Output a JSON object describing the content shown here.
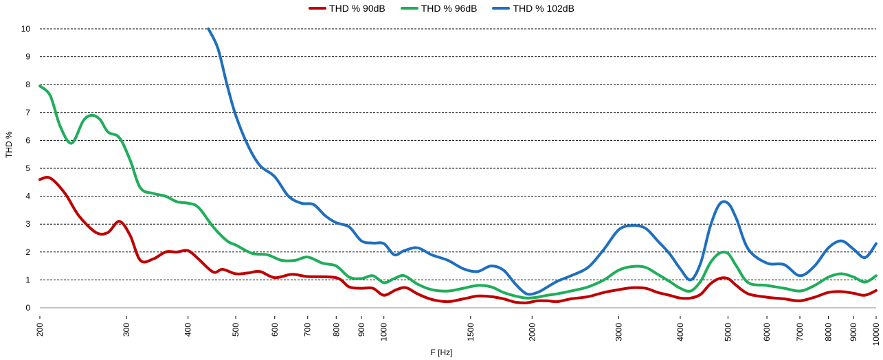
{
  "chart_data": {
    "type": "line",
    "xlabel": "F [Hz]",
    "ylabel": "THD %",
    "xscale": "log",
    "xlim": [
      200,
      10000
    ],
    "ylim": [
      0,
      10
    ],
    "yticks": [
      "0",
      "1",
      "2",
      "3",
      "4",
      "5",
      "6",
      "7",
      "8",
      "9",
      "10"
    ],
    "xticks": [
      {
        "value": 200,
        "label": "200"
      },
      {
        "value": 300,
        "label": "300"
      },
      {
        "value": 400,
        "label": "400"
      },
      {
        "value": 500,
        "label": "500"
      },
      {
        "value": 600,
        "label": "600"
      },
      {
        "value": 700,
        "label": "700"
      },
      {
        "value": 800,
        "label": "800"
      },
      {
        "value": 900,
        "label": "900"
      },
      {
        "value": 1000,
        "label": "1000"
      },
      {
        "value": 1500,
        "label": "1500"
      },
      {
        "value": 2000,
        "label": "2000"
      },
      {
        "value": 3000,
        "label": "3000"
      },
      {
        "value": 4000,
        "label": "4000"
      },
      {
        "value": 5000,
        "label": "5000"
      },
      {
        "value": 6000,
        "label": "6000"
      },
      {
        "value": 7000,
        "label": "7000"
      },
      {
        "value": 8000,
        "label": "8000"
      },
      {
        "value": 9000,
        "label": "9000"
      },
      {
        "value": 10000,
        "label": "10000"
      }
    ],
    "grid": "horizontal dashed",
    "legend_position": "top",
    "series": [
      {
        "name": "THD % 90dB",
        "color": "#c00000",
        "points": [
          [
            200,
            4.6
          ],
          [
            210,
            4.65
          ],
          [
            225,
            4.1
          ],
          [
            240,
            3.3
          ],
          [
            260,
            2.7
          ],
          [
            275,
            2.7
          ],
          [
            290,
            3.1
          ],
          [
            305,
            2.6
          ],
          [
            320,
            1.7
          ],
          [
            340,
            1.75
          ],
          [
            360,
            2.0
          ],
          [
            380,
            2.0
          ],
          [
            400,
            2.05
          ],
          [
            420,
            1.75
          ],
          [
            450,
            1.28
          ],
          [
            470,
            1.38
          ],
          [
            500,
            1.22
          ],
          [
            530,
            1.25
          ],
          [
            560,
            1.3
          ],
          [
            600,
            1.08
          ],
          [
            650,
            1.2
          ],
          [
            700,
            1.12
          ],
          [
            800,
            1.08
          ],
          [
            850,
            0.75
          ],
          [
            900,
            0.7
          ],
          [
            950,
            0.7
          ],
          [
            1000,
            0.45
          ],
          [
            1060,
            0.65
          ],
          [
            1110,
            0.72
          ],
          [
            1170,
            0.5
          ],
          [
            1250,
            0.3
          ],
          [
            1350,
            0.22
          ],
          [
            1450,
            0.32
          ],
          [
            1550,
            0.42
          ],
          [
            1650,
            0.4
          ],
          [
            1750,
            0.32
          ],
          [
            1850,
            0.2
          ],
          [
            1950,
            0.18
          ],
          [
            2050,
            0.25
          ],
          [
            2150,
            0.25
          ],
          [
            2250,
            0.22
          ],
          [
            2400,
            0.32
          ],
          [
            2600,
            0.4
          ],
          [
            2800,
            0.55
          ],
          [
            3000,
            0.65
          ],
          [
            3200,
            0.72
          ],
          [
            3400,
            0.7
          ],
          [
            3600,
            0.55
          ],
          [
            3800,
            0.45
          ],
          [
            4000,
            0.35
          ],
          [
            4200,
            0.35
          ],
          [
            4400,
            0.48
          ],
          [
            4600,
            0.85
          ],
          [
            4800,
            1.05
          ],
          [
            5000,
            1.05
          ],
          [
            5200,
            0.8
          ],
          [
            5500,
            0.5
          ],
          [
            6000,
            0.38
          ],
          [
            6500,
            0.32
          ],
          [
            7000,
            0.25
          ],
          [
            7500,
            0.38
          ],
          [
            8000,
            0.55
          ],
          [
            8500,
            0.58
          ],
          [
            9000,
            0.52
          ],
          [
            9500,
            0.45
          ],
          [
            10000,
            0.62
          ]
        ]
      },
      {
        "name": "THD % 96dB",
        "color": "#1fae5a",
        "points": [
          [
            200,
            7.95
          ],
          [
            210,
            7.6
          ],
          [
            220,
            6.5
          ],
          [
            232,
            5.9
          ],
          [
            245,
            6.7
          ],
          [
            255,
            6.9
          ],
          [
            265,
            6.75
          ],
          [
            275,
            6.3
          ],
          [
            290,
            6.1
          ],
          [
            305,
            5.3
          ],
          [
            320,
            4.3
          ],
          [
            340,
            4.1
          ],
          [
            360,
            4.0
          ],
          [
            380,
            3.8
          ],
          [
            400,
            3.75
          ],
          [
            420,
            3.6
          ],
          [
            450,
            2.9
          ],
          [
            480,
            2.4
          ],
          [
            500,
            2.25
          ],
          [
            540,
            1.95
          ],
          [
            580,
            1.9
          ],
          [
            620,
            1.7
          ],
          [
            660,
            1.7
          ],
          [
            700,
            1.82
          ],
          [
            750,
            1.6
          ],
          [
            800,
            1.5
          ],
          [
            850,
            1.1
          ],
          [
            900,
            1.05
          ],
          [
            950,
            1.15
          ],
          [
            1000,
            0.9
          ],
          [
            1050,
            1.05
          ],
          [
            1100,
            1.15
          ],
          [
            1170,
            0.85
          ],
          [
            1250,
            0.65
          ],
          [
            1350,
            0.6
          ],
          [
            1450,
            0.7
          ],
          [
            1550,
            0.8
          ],
          [
            1650,
            0.75
          ],
          [
            1750,
            0.55
          ],
          [
            1850,
            0.42
          ],
          [
            1950,
            0.35
          ],
          [
            2050,
            0.38
          ],
          [
            2150,
            0.45
          ],
          [
            2250,
            0.5
          ],
          [
            2400,
            0.6
          ],
          [
            2600,
            0.75
          ],
          [
            2800,
            1.0
          ],
          [
            3000,
            1.35
          ],
          [
            3200,
            1.48
          ],
          [
            3400,
            1.45
          ],
          [
            3600,
            1.2
          ],
          [
            3800,
            0.95
          ],
          [
            4000,
            0.7
          ],
          [
            4200,
            0.6
          ],
          [
            4400,
            0.95
          ],
          [
            4600,
            1.6
          ],
          [
            4800,
            1.95
          ],
          [
            5000,
            1.95
          ],
          [
            5200,
            1.5
          ],
          [
            5500,
            0.9
          ],
          [
            6000,
            0.8
          ],
          [
            6500,
            0.7
          ],
          [
            7000,
            0.6
          ],
          [
            7500,
            0.8
          ],
          [
            8000,
            1.1
          ],
          [
            8500,
            1.22
          ],
          [
            9000,
            1.1
          ],
          [
            9500,
            0.92
          ],
          [
            10000,
            1.15
          ]
        ]
      },
      {
        "name": "THD % 102dB",
        "color": "#1f6fbf",
        "points": [
          [
            440,
            10.0
          ],
          [
            460,
            9.3
          ],
          [
            480,
            8.0
          ],
          [
            500,
            6.9
          ],
          [
            530,
            5.8
          ],
          [
            560,
            5.1
          ],
          [
            600,
            4.7
          ],
          [
            640,
            4.0
          ],
          [
            680,
            3.75
          ],
          [
            720,
            3.7
          ],
          [
            760,
            3.3
          ],
          [
            800,
            3.05
          ],
          [
            850,
            2.9
          ],
          [
            900,
            2.4
          ],
          [
            950,
            2.32
          ],
          [
            1000,
            2.3
          ],
          [
            1050,
            1.9
          ],
          [
            1100,
            2.05
          ],
          [
            1170,
            2.15
          ],
          [
            1250,
            1.9
          ],
          [
            1350,
            1.7
          ],
          [
            1450,
            1.4
          ],
          [
            1550,
            1.3
          ],
          [
            1650,
            1.5
          ],
          [
            1750,
            1.35
          ],
          [
            1850,
            0.85
          ],
          [
            1950,
            0.5
          ],
          [
            2050,
            0.55
          ],
          [
            2150,
            0.75
          ],
          [
            2250,
            0.95
          ],
          [
            2400,
            1.15
          ],
          [
            2600,
            1.45
          ],
          [
            2800,
            2.1
          ],
          [
            3000,
            2.8
          ],
          [
            3200,
            2.95
          ],
          [
            3400,
            2.85
          ],
          [
            3600,
            2.4
          ],
          [
            3800,
            1.95
          ],
          [
            4000,
            1.4
          ],
          [
            4200,
            1.0
          ],
          [
            4400,
            1.6
          ],
          [
            4600,
            2.9
          ],
          [
            4800,
            3.7
          ],
          [
            5000,
            3.75
          ],
          [
            5200,
            3.2
          ],
          [
            5500,
            2.1
          ],
          [
            6000,
            1.6
          ],
          [
            6500,
            1.55
          ],
          [
            7000,
            1.15
          ],
          [
            7500,
            1.5
          ],
          [
            8000,
            2.15
          ],
          [
            8500,
            2.4
          ],
          [
            9000,
            2.1
          ],
          [
            9500,
            1.8
          ],
          [
            10000,
            2.3
          ]
        ]
      }
    ]
  }
}
